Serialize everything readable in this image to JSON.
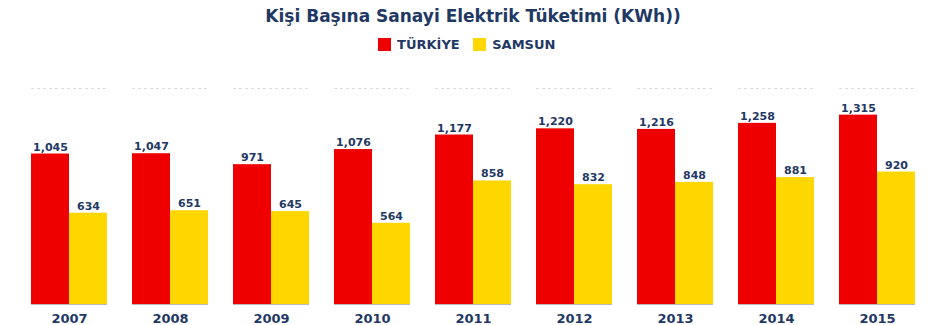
{
  "chart_data": {
    "type": "bar",
    "title": "Kişi Başına Sanayi Elektrik Tüketimi (KWh))",
    "categories": [
      "2007",
      "2008",
      "2009",
      "2010",
      "2011",
      "2012",
      "2013",
      "2014",
      "2015"
    ],
    "series": [
      {
        "name": "TÜRKİYE",
        "color": "#EE0000",
        "values": [
          1045,
          1047,
          971,
          1076,
          1177,
          1220,
          1216,
          1258,
          1315
        ],
        "value_labels": [
          "1,045",
          "1,047",
          "971",
          "1,076",
          "1,177",
          "1,220",
          "1,216",
          "1,258",
          "1,315"
        ]
      },
      {
        "name": "SAMSUN",
        "color": "#FFD700",
        "values": [
          634,
          651,
          645,
          564,
          858,
          832,
          848,
          881,
          920
        ]
      }
    ],
    "ylim": [
      0,
      1500
    ],
    "data_labels": true,
    "legend": "top",
    "grid": false,
    "tick_labels": "x"
  }
}
